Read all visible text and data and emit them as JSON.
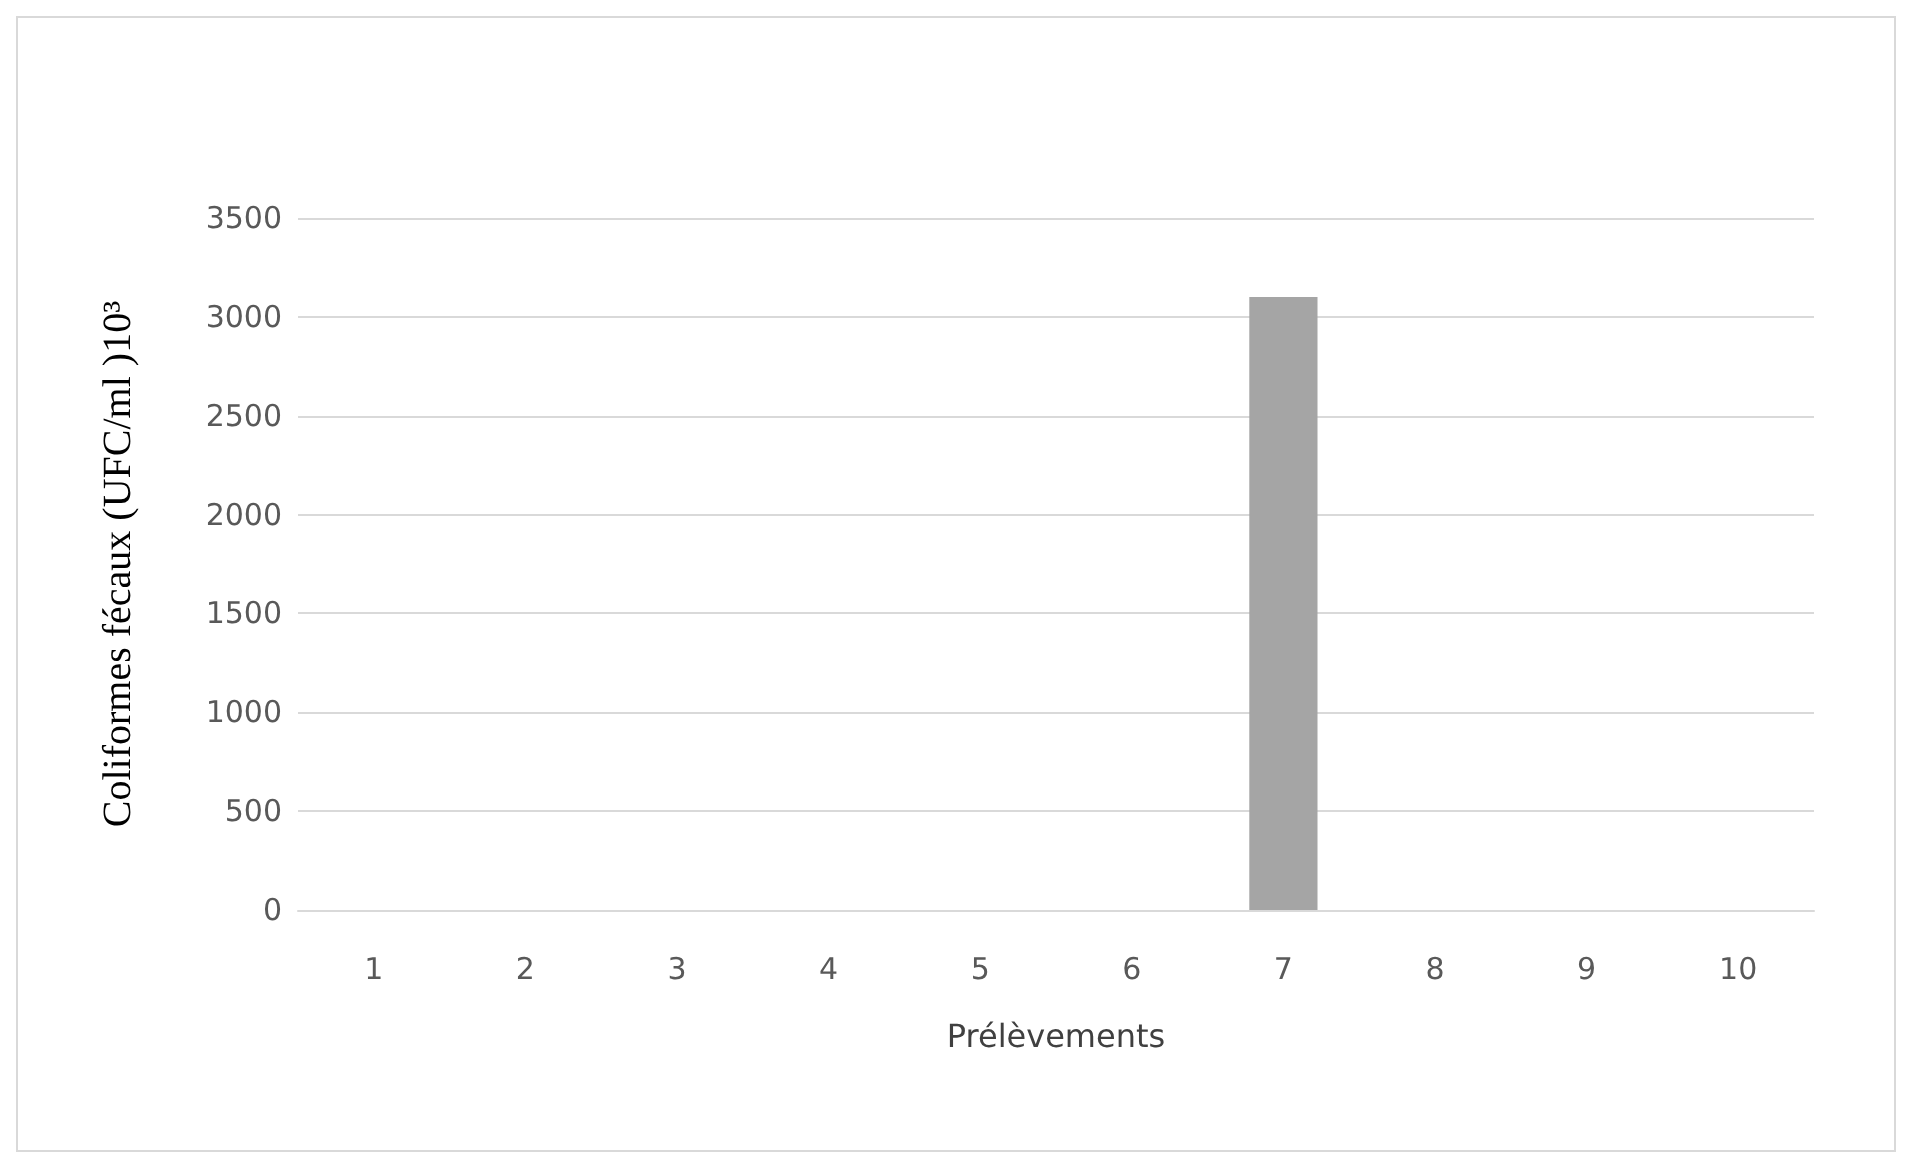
{
  "chart_data": {
    "type": "bar",
    "xlabel": "Prélèvements",
    "ylabel": "Coliformes fécaux (UFC/ml )10³",
    "categories": [
      "1",
      "2",
      "3",
      "4",
      "5",
      "6",
      "7",
      "8",
      "9",
      "10"
    ],
    "values": [
      0,
      0,
      0,
      0,
      0,
      0,
      3100,
      0,
      0,
      0
    ],
    "color": "#a5a5a5",
    "ylim": [
      0,
      3500
    ],
    "yticks": [
      0,
      500,
      1000,
      1500,
      2000,
      2500,
      3000,
      3500
    ],
    "grid": "y"
  }
}
